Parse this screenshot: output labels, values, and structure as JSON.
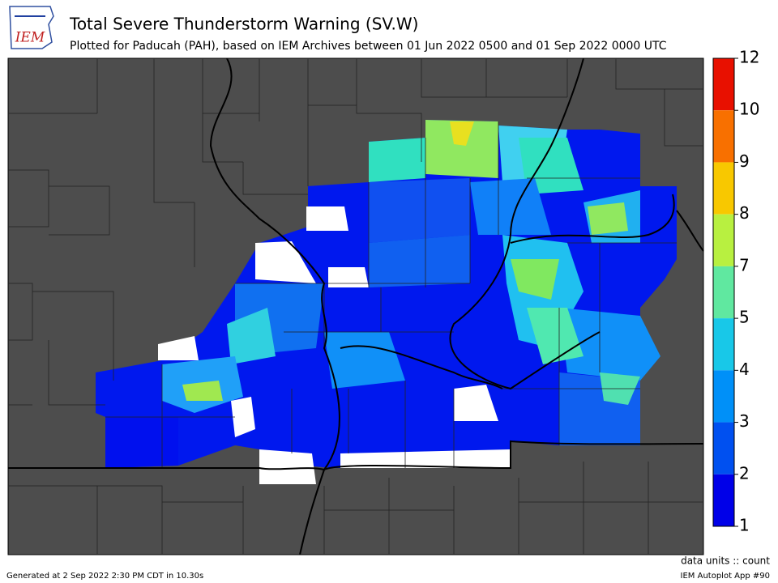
{
  "header": {
    "logo": "IEM",
    "title": "Total Severe Thunderstorm Warning (SV.W)",
    "subtitle": "Plotted for Paducah (PAH), based on IEM Archives  between 01 Jun 2022 0500 and 01 Sep 2022 0000 UTC"
  },
  "colorbar": {
    "ticks": [
      1,
      2,
      3,
      4,
      5,
      7,
      8,
      9,
      10,
      12
    ],
    "colors": [
      "#0000e8",
      "#0050f0",
      "#0090f8",
      "#18c8e8",
      "#60e8a0",
      "#b8f040",
      "#f8c800",
      "#f87000",
      "#e81000"
    ]
  },
  "footer": {
    "generated": "Generated at 2 Sep 2022 2:30 PM CDT in 10.30s",
    "units": "data units :: count",
    "app": "IEM Autoplot App #90"
  }
}
